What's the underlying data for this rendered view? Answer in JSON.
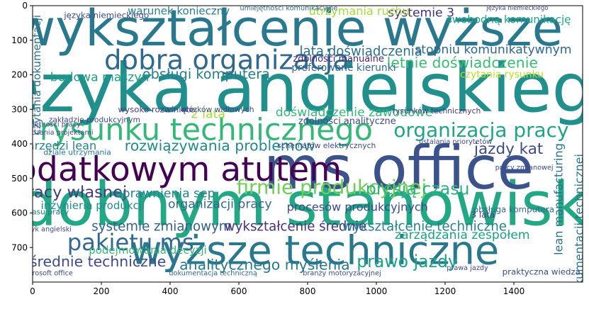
{
  "chart_data": {
    "type": "wordcloud",
    "xlim": [
      0,
      1600
    ],
    "ylim": [
      800,
      0
    ],
    "xticks": [
      "0",
      "200",
      "400",
      "600",
      "800",
      "1000",
      "1200",
      "1400"
    ],
    "yticks": [
      "0",
      "100",
      "200",
      "300",
      "400",
      "500",
      "600",
      "700"
    ],
    "words": [
      {
        "text": "wykształcenie wyższe",
        "x": 745,
        "y": 65,
        "size": 66,
        "color": "#2a788e"
      },
      {
        "text": "języka angielskiego",
        "x": 800,
        "y": 240,
        "size": 88,
        "color": "#21908d"
      },
      {
        "text": "podobnym stanowisku",
        "x": 730,
        "y": 575,
        "size": 80,
        "color": "#22a884"
      },
      {
        "text": "wyższe techniczne",
        "x": 820,
        "y": 710,
        "size": 52,
        "color": "#2a788e"
      },
      {
        "text": "ms office",
        "x": 1065,
        "y": 470,
        "size": 78,
        "color": "#3b528b"
      },
      {
        "text": "dodatkowym atutem",
        "x": 395,
        "y": 475,
        "size": 44,
        "color": "#440154"
      },
      {
        "text": "rysunku technicznego",
        "x": 505,
        "y": 360,
        "size": 40,
        "color": "#35b779"
      },
      {
        "text": "dobra organizacja",
        "x": 565,
        "y": 158,
        "size": 36,
        "color": "#31688e"
      },
      {
        "text": "organizacja pracy",
        "x": 1305,
        "y": 360,
        "size": 26,
        "color": "#20a486"
      },
      {
        "text": "firmie produkcyjnej",
        "x": 870,
        "y": 525,
        "size": 26,
        "color": "#6ece58"
      },
      {
        "text": "pakietu ms",
        "x": 285,
        "y": 685,
        "size": 30,
        "color": "#31688e"
      },
      {
        "text": "rozwiązywania problemów",
        "x": 545,
        "y": 405,
        "size": 19,
        "color": "#238a8d"
      },
      {
        "text": "letnie doświadczenie",
        "x": 1250,
        "y": 165,
        "size": 19,
        "color": "#3bbb75"
      },
      {
        "text": "lata doświadczenia",
        "x": 955,
        "y": 133,
        "size": 17,
        "color": "#2c728e"
      },
      {
        "text": "stopniu komunikatywnym",
        "x": 1340,
        "y": 128,
        "size": 16,
        "color": "#31688e"
      },
      {
        "text": "obsługi komputera",
        "x": 505,
        "y": 198,
        "size": 18,
        "color": "#287d8e"
      },
      {
        "text": "budowa maszyn",
        "x": 195,
        "y": 208,
        "size": 16,
        "color": "#1f9e89"
      },
      {
        "text": "doświadczenie zawodowe",
        "x": 935,
        "y": 310,
        "size": 16,
        "color": "#35b779"
      },
      {
        "text": "presją czasu",
        "x": 1120,
        "y": 530,
        "size": 22,
        "color": "#2db27d"
      },
      {
        "text": "jazdy kat",
        "x": 1385,
        "y": 415,
        "size": 20,
        "color": "#3e4a89"
      },
      {
        "text": "pracy własnej",
        "x": 115,
        "y": 540,
        "size": 21,
        "color": "#443a83"
      },
      {
        "text": "uprawnienia sep",
        "x": 385,
        "y": 545,
        "size": 16,
        "color": "#26828e"
      },
      {
        "text": "organizacji pracy",
        "x": 545,
        "y": 575,
        "size": 16,
        "color": "#31688e"
      },
      {
        "text": "inżynieria produkcji",
        "x": 175,
        "y": 578,
        "size": 14,
        "color": "#238a8d"
      },
      {
        "text": "procesów produkcyjnych",
        "x": 945,
        "y": 583,
        "size": 15,
        "color": "#3e4a89"
      },
      {
        "text": "systemie zmianowym",
        "x": 375,
        "y": 640,
        "size": 17,
        "color": "#35608d"
      },
      {
        "text": "wykształcenie średnie",
        "x": 765,
        "y": 640,
        "size": 17,
        "color": "#46327e"
      },
      {
        "text": "wykształcenie techniczne",
        "x": 1140,
        "y": 640,
        "size": 17,
        "color": "#26828e"
      },
      {
        "text": "zarządzania zespołem",
        "x": 1250,
        "y": 665,
        "size": 16,
        "color": "#1fa088"
      },
      {
        "text": "średnie techniczne",
        "x": 190,
        "y": 740,
        "size": 19,
        "color": "#3e4a89"
      },
      {
        "text": "analitycznego myślenia",
        "x": 675,
        "y": 750,
        "size": 19,
        "color": "#2a788e"
      },
      {
        "text": "prawo jazdy",
        "x": 1090,
        "y": 740,
        "size": 22,
        "color": "#1fa088"
      },
      {
        "text": "podejmowania decyzji",
        "x": 335,
        "y": 708,
        "size": 14,
        "color": "#35b779"
      },
      {
        "text": "systemie 3",
        "x": 1130,
        "y": 22,
        "size": 16,
        "color": "#46327e"
      },
      {
        "text": "swobodną komunikację",
        "x": 1385,
        "y": 40,
        "size": 14,
        "color": "#20a486"
      },
      {
        "text": "utrzymania ruchu",
        "x": 950,
        "y": 15,
        "size": 15,
        "color": "#a5db36"
      },
      {
        "text": "warunek konieczny",
        "x": 425,
        "y": 15,
        "size": 14,
        "color": "#287d8e"
      },
      {
        "text": "języka niemieckiego",
        "x": 215,
        "y": 28,
        "size": 11,
        "color": "#3e4a89"
      },
      {
        "text": "preferowane kierunki",
        "x": 905,
        "y": 180,
        "size": 13,
        "color": "#31688e"
      },
      {
        "text": "zdolności manualne",
        "x": 890,
        "y": 155,
        "size": 12,
        "color": "#482475"
      },
      {
        "text": "czytania rysunku",
        "x": 1365,
        "y": 200,
        "size": 13,
        "color": "#b5de2b"
      },
      {
        "text": "lean manufacturing",
        "x": 1530,
        "y": 560,
        "size": 15,
        "color": "#2c728e",
        "rotate": true
      },
      {
        "text": "dokumentacji technicznej",
        "x": 1590,
        "y": 640,
        "size": 15,
        "color": "#2a788e",
        "rotate": true
      },
      {
        "text": "czytania dokumentacji",
        "x": 12,
        "y": 200,
        "size": 14,
        "color": "#2c728e",
        "rotate": true
      },
      {
        "text": "narzędzi lean",
        "x": 75,
        "y": 405,
        "size": 15,
        "color": "#26828e"
      },
      {
        "text": "zdolności analityczne",
        "x": 915,
        "y": 335,
        "size": 12,
        "color": "#3e4a89"
      },
      {
        "text": "2 lata",
        "x": 510,
        "y": 315,
        "size": 16,
        "color": "#a5db36"
      },
      {
        "text": "wysoko rozwinięte",
        "x": 360,
        "y": 300,
        "size": 11,
        "color": "#443a83"
      },
      {
        "text": "schematów elektrycznych",
        "x": 855,
        "y": 405,
        "size": 10,
        "color": "#3e4a89"
      },
      {
        "text": "umiejętności komunikacyjne",
        "x": 745,
        "y": 8,
        "size": 9,
        "color": "#31688e"
      },
      {
        "text": "3 lata",
        "x": 1310,
        "y": 605,
        "size": 11,
        "color": "#443a83"
      },
      {
        "text": "obsługa komputera",
        "x": 1400,
        "y": 590,
        "size": 11,
        "color": "#31688e"
      },
      {
        "text": "microsoft office",
        "x": 40,
        "y": 775,
        "size": 9,
        "color": "#3e4a89"
      },
      {
        "text": "praktyczna wiedza",
        "x": 1480,
        "y": 770,
        "size": 11,
        "color": "#3e4a89"
      },
      {
        "text": "dokumentacja techniczną",
        "x": 525,
        "y": 775,
        "size": 9,
        "color": "#31688e"
      },
      {
        "text": "zakładzie produkcyjnym",
        "x": 180,
        "y": 330,
        "size": 10,
        "color": "#3e4a89"
      },
      {
        "text": "dziale utrzymania",
        "x": 130,
        "y": 425,
        "size": 10,
        "color": "#2a788e"
      },
      {
        "text": "wózków widłowych",
        "x": 540,
        "y": 300,
        "size": 10,
        "color": "#3e4a89"
      },
      {
        "text": "rysunków technicznych",
        "x": 1175,
        "y": 305,
        "size": 10,
        "color": "#443a83"
      },
      {
        "text": "branży motoryzacyjnej",
        "x": 900,
        "y": 775,
        "size": 9,
        "color": "#3e4a89"
      },
      {
        "text": "pracy zmianowej",
        "x": 1430,
        "y": 470,
        "size": 9,
        "color": "#3e4a89"
      },
      {
        "text": "ustalania priorytetów",
        "x": 1230,
        "y": 395,
        "size": 9,
        "color": "#3e4a89"
      },
      {
        "text": "umiejętności pracy",
        "x": 45,
        "y": 345,
        "size": 9,
        "color": "#3e4a89"
      },
      {
        "text": "zarządzania projektami",
        "x": 60,
        "y": 368,
        "size": 9,
        "color": "#3e4a89"
      },
      {
        "text": "języka niemieckiego",
        "x": 1410,
        "y": 8,
        "size": 8,
        "color": "#3e4a89"
      },
      {
        "text": "prawa jazdy",
        "x": 1265,
        "y": 760,
        "size": 9,
        "color": "#3e4a89"
      },
      {
        "text": "czasu pracy",
        "x": 40,
        "y": 597,
        "size": 10,
        "color": "#2a788e"
      },
      {
        "text": "język angielski",
        "x": 40,
        "y": 648,
        "size": 9,
        "color": "#3e4a89"
      }
    ]
  }
}
